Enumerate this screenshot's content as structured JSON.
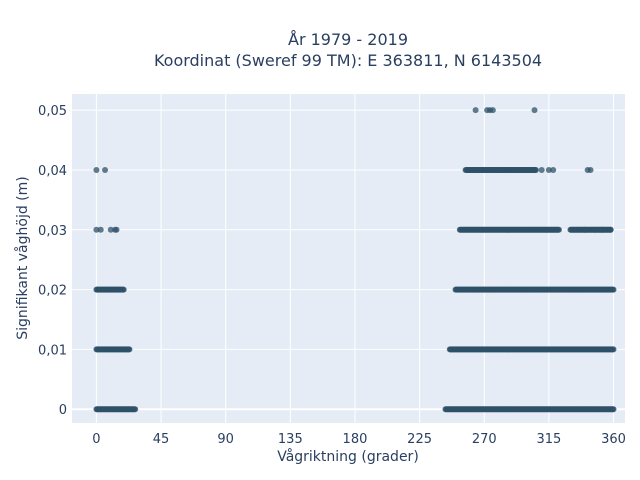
{
  "chart_data": {
    "type": "scatter",
    "title_line1": "År 1979 - 2019",
    "title_line2": "Koordinat (Sweref 99 TM): E 363811, N 6143504",
    "xlabel": "Vågriktning (grader)",
    "ylabel": "Signifikant våghöjd (m)",
    "xlim": [
      -17,
      368
    ],
    "ylim": [
      -0.0023,
      0.0527
    ],
    "x_ticks": [
      0,
      45,
      90,
      135,
      180,
      225,
      270,
      315,
      360
    ],
    "x_tick_labels": [
      "0",
      "45",
      "90",
      "135",
      "180",
      "225",
      "270",
      "315",
      "360"
    ],
    "y_ticks": [
      0,
      0.01,
      0.02,
      0.03,
      0.04,
      0.05
    ],
    "y_tick_labels": [
      "0",
      "0,01",
      "0,02",
      "0,03",
      "0,04",
      "0,05"
    ],
    "grid": true,
    "marker_color": "#2f5168",
    "plot_bg": "#e5ecf6",
    "series": [
      {
        "ranges": [
          {
            "y": 0,
            "x_from": 0,
            "x_to": 27
          },
          {
            "y": 0,
            "x_from": 243,
            "x_to": 360
          },
          {
            "y": 0.01,
            "x_from": 0,
            "x_to": 23
          },
          {
            "y": 0.01,
            "x_from": 246,
            "x_to": 360
          },
          {
            "y": 0.02,
            "x_from": 0,
            "x_to": 19
          },
          {
            "y": 0.02,
            "x_from": 250,
            "x_to": 360
          },
          {
            "y": 0.03,
            "x_from": 253,
            "x_to": 322
          },
          {
            "y": 0.03,
            "x_from": 330,
            "x_to": 358
          },
          {
            "y": 0.04,
            "x_from": 257,
            "x_to": 306
          }
        ],
        "points": [
          {
            "x": 0,
            "y": 0.04
          },
          {
            "x": 6,
            "y": 0.04
          },
          {
            "x": 0,
            "y": 0.03
          },
          {
            "x": 3,
            "y": 0.03
          },
          {
            "x": 10,
            "y": 0.03
          },
          {
            "x": 13,
            "y": 0.03
          },
          {
            "x": 14,
            "y": 0.03
          },
          {
            "x": 310,
            "y": 0.04
          },
          {
            "x": 315,
            "y": 0.04
          },
          {
            "x": 318,
            "y": 0.04
          },
          {
            "x": 342,
            "y": 0.04
          },
          {
            "x": 344,
            "y": 0.04
          },
          {
            "x": 340,
            "y": 0.03
          },
          {
            "x": 347,
            "y": 0.03
          },
          {
            "x": 352,
            "y": 0.03
          },
          {
            "x": 358,
            "y": 0.03
          },
          {
            "x": 264,
            "y": 0.05
          },
          {
            "x": 272,
            "y": 0.05
          },
          {
            "x": 274,
            "y": 0.05
          },
          {
            "x": 276,
            "y": 0.05
          },
          {
            "x": 305,
            "y": 0.05
          }
        ]
      }
    ]
  }
}
